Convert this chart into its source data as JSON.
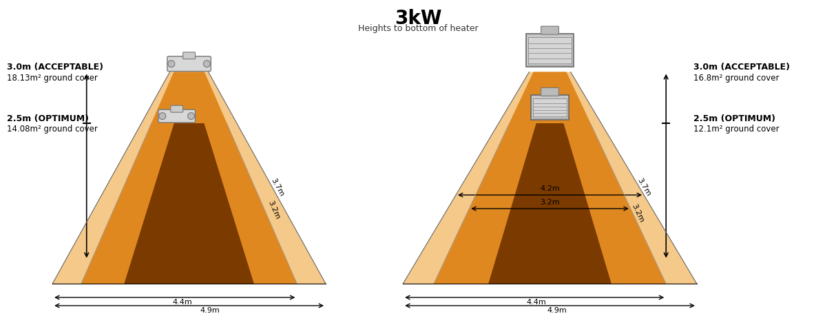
{
  "title": "3kW",
  "subtitle": "Heights to bottom of heater",
  "left_labels": {
    "acceptable": "3.0m (ACCEPTABLE)",
    "acceptable_cover": "18.13m² ground cover",
    "optimum": "2.5m (OPTIMUM)",
    "optimum_cover": "14.08m² ground cover"
  },
  "right_labels": {
    "acceptable": "3.0m (ACCEPTABLE)",
    "acceptable_cover": "16.8m² ground cover",
    "optimum": "2.5m (OPTIMUM)",
    "optimum_cover": "12.1m² ground cover"
  },
  "color_light_orange": "#F5C98A",
  "color_medium_orange": "#E08820",
  "color_dark_orange": "#7B3A00",
  "color_background": "#FFFFFF",
  "color_outline": "#888888"
}
